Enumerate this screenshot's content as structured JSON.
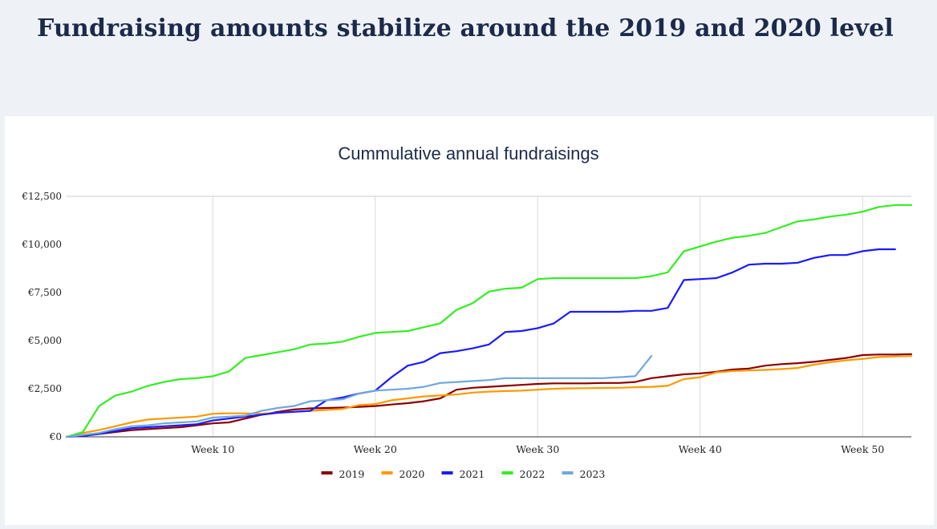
{
  "page": {
    "title": "Fundraising amounts stabilize around the 2019 and 2020 level"
  },
  "chart_data": {
    "type": "line",
    "title": "Cummulative annual fundraisings",
    "xlabel": "",
    "ylabel": "",
    "xlim": [
      1,
      53
    ],
    "ylim": [
      0,
      12500
    ],
    "x_ticks": [
      10,
      20,
      30,
      40,
      50
    ],
    "x_tick_labels": [
      "Week 10",
      "Week 20",
      "Week 30",
      "Week 40",
      "Week 50"
    ],
    "y_ticks": [
      0,
      2500,
      5000,
      7500,
      10000,
      12500
    ],
    "y_tick_labels": [
      "€0",
      "€2,500",
      "€5,000",
      "€7,500",
      "€10,000",
      "€12,500"
    ],
    "grid": "vertical",
    "legend_position": "bottom",
    "series": [
      {
        "name": "2019",
        "color": "#8b0000",
        "x": [
          1,
          2,
          3,
          4,
          5,
          6,
          7,
          8,
          9,
          10,
          11,
          12,
          13,
          14,
          15,
          16,
          17,
          18,
          19,
          20,
          21,
          22,
          23,
          24,
          25,
          26,
          27,
          28,
          29,
          30,
          31,
          32,
          33,
          34,
          35,
          36,
          37,
          38,
          39,
          40,
          41,
          42,
          43,
          44,
          45,
          46,
          47,
          48,
          49,
          50,
          51,
          52,
          53
        ],
        "values": [
          0,
          50,
          150,
          250,
          350,
          400,
          450,
          500,
          600,
          700,
          750,
          950,
          1150,
          1300,
          1420,
          1480,
          1500,
          1520,
          1560,
          1600,
          1680,
          1750,
          1850,
          2000,
          2450,
          2550,
          2600,
          2650,
          2700,
          2750,
          2780,
          2780,
          2780,
          2800,
          2800,
          2850,
          3050,
          3150,
          3250,
          3300,
          3380,
          3500,
          3550,
          3700,
          3780,
          3830,
          3900,
          4000,
          4100,
          4250,
          4280,
          4280,
          4300
        ]
      },
      {
        "name": "2020",
        "color": "#ff9900",
        "x": [
          1,
          2,
          3,
          4,
          5,
          6,
          7,
          8,
          9,
          10,
          11,
          12,
          13,
          14,
          15,
          16,
          17,
          18,
          19,
          20,
          21,
          22,
          23,
          24,
          25,
          26,
          27,
          28,
          29,
          30,
          31,
          32,
          33,
          34,
          35,
          36,
          37,
          38,
          39,
          40,
          41,
          42,
          43,
          44,
          45,
          46,
          47,
          48,
          49,
          50,
          51,
          52,
          53
        ],
        "values": [
          0,
          200,
          350,
          550,
          750,
          900,
          950,
          1000,
          1050,
          1200,
          1220,
          1220,
          1200,
          1250,
          1300,
          1350,
          1400,
          1450,
          1650,
          1700,
          1900,
          2000,
          2100,
          2150,
          2200,
          2300,
          2350,
          2380,
          2400,
          2450,
          2500,
          2520,
          2530,
          2540,
          2550,
          2580,
          2600,
          2650,
          3000,
          3100,
          3350,
          3420,
          3450,
          3480,
          3520,
          3580,
          3750,
          3880,
          3980,
          4050,
          4150,
          4180,
          4200
        ]
      },
      {
        "name": "2021",
        "color": "#1a1aff",
        "x": [
          1,
          2,
          3,
          4,
          5,
          6,
          7,
          8,
          9,
          10,
          11,
          12,
          13,
          14,
          15,
          16,
          17,
          18,
          19,
          20,
          21,
          22,
          23,
          24,
          25,
          26,
          27,
          28,
          29,
          30,
          31,
          32,
          33,
          34,
          35,
          36,
          37,
          38,
          39,
          40,
          41,
          42,
          43,
          44,
          45,
          46,
          47,
          48,
          49,
          50,
          51,
          52
        ],
        "values": [
          0,
          50,
          150,
          300,
          450,
          500,
          550,
          600,
          650,
          850,
          950,
          1050,
          1150,
          1250,
          1300,
          1350,
          1900,
          2050,
          2250,
          2400,
          3100,
          3700,
          3900,
          4350,
          4450,
          4600,
          4800,
          5450,
          5500,
          5650,
          5900,
          6500,
          6500,
          6500,
          6500,
          6550,
          6550,
          6700,
          8150,
          8200,
          8250,
          8550,
          8950,
          9000,
          9000,
          9050,
          9300,
          9450,
          9450,
          9650,
          9750,
          9750
        ]
      },
      {
        "name": "2022",
        "color": "#33ee22",
        "x": [
          1,
          2,
          3,
          4,
          5,
          6,
          7,
          8,
          9,
          10,
          11,
          12,
          13,
          14,
          15,
          16,
          17,
          18,
          19,
          20,
          21,
          22,
          23,
          24,
          25,
          26,
          27,
          28,
          29,
          30,
          31,
          32,
          33,
          34,
          35,
          36,
          37,
          38,
          39,
          40,
          41,
          42,
          43,
          44,
          45,
          46,
          47,
          48,
          49,
          50,
          51,
          52,
          53
        ],
        "values": [
          0,
          250,
          1600,
          2150,
          2350,
          2650,
          2850,
          3000,
          3050,
          3150,
          3400,
          4100,
          4250,
          4400,
          4550,
          4800,
          4850,
          4950,
          5200,
          5400,
          5450,
          5500,
          5700,
          5900,
          6600,
          6950,
          7550,
          7700,
          7750,
          8200,
          8250,
          8250,
          8250,
          8250,
          8250,
          8250,
          8350,
          8550,
          9650,
          9900,
          10150,
          10350,
          10450,
          10600,
          10900,
          11200,
          11300,
          11450,
          11550,
          11700,
          11950,
          12050,
          12050
        ]
      },
      {
        "name": "2023",
        "color": "#6fa8dc",
        "x": [
          1,
          2,
          3,
          4,
          5,
          6,
          7,
          8,
          9,
          10,
          11,
          12,
          13,
          14,
          15,
          16,
          17,
          18,
          19,
          20,
          21,
          22,
          23,
          24,
          25,
          26,
          27,
          28,
          29,
          30,
          31,
          32,
          33,
          34,
          35,
          36,
          37
        ],
        "values": [
          0,
          100,
          200,
          400,
          550,
          600,
          700,
          750,
          800,
          1000,
          1050,
          1100,
          1350,
          1500,
          1600,
          1850,
          1900,
          1950,
          2250,
          2400,
          2450,
          2500,
          2600,
          2800,
          2850,
          2900,
          2950,
          3050,
          3050,
          3050,
          3050,
          3050,
          3050,
          3050,
          3100,
          3150,
          4200
        ]
      }
    ]
  }
}
